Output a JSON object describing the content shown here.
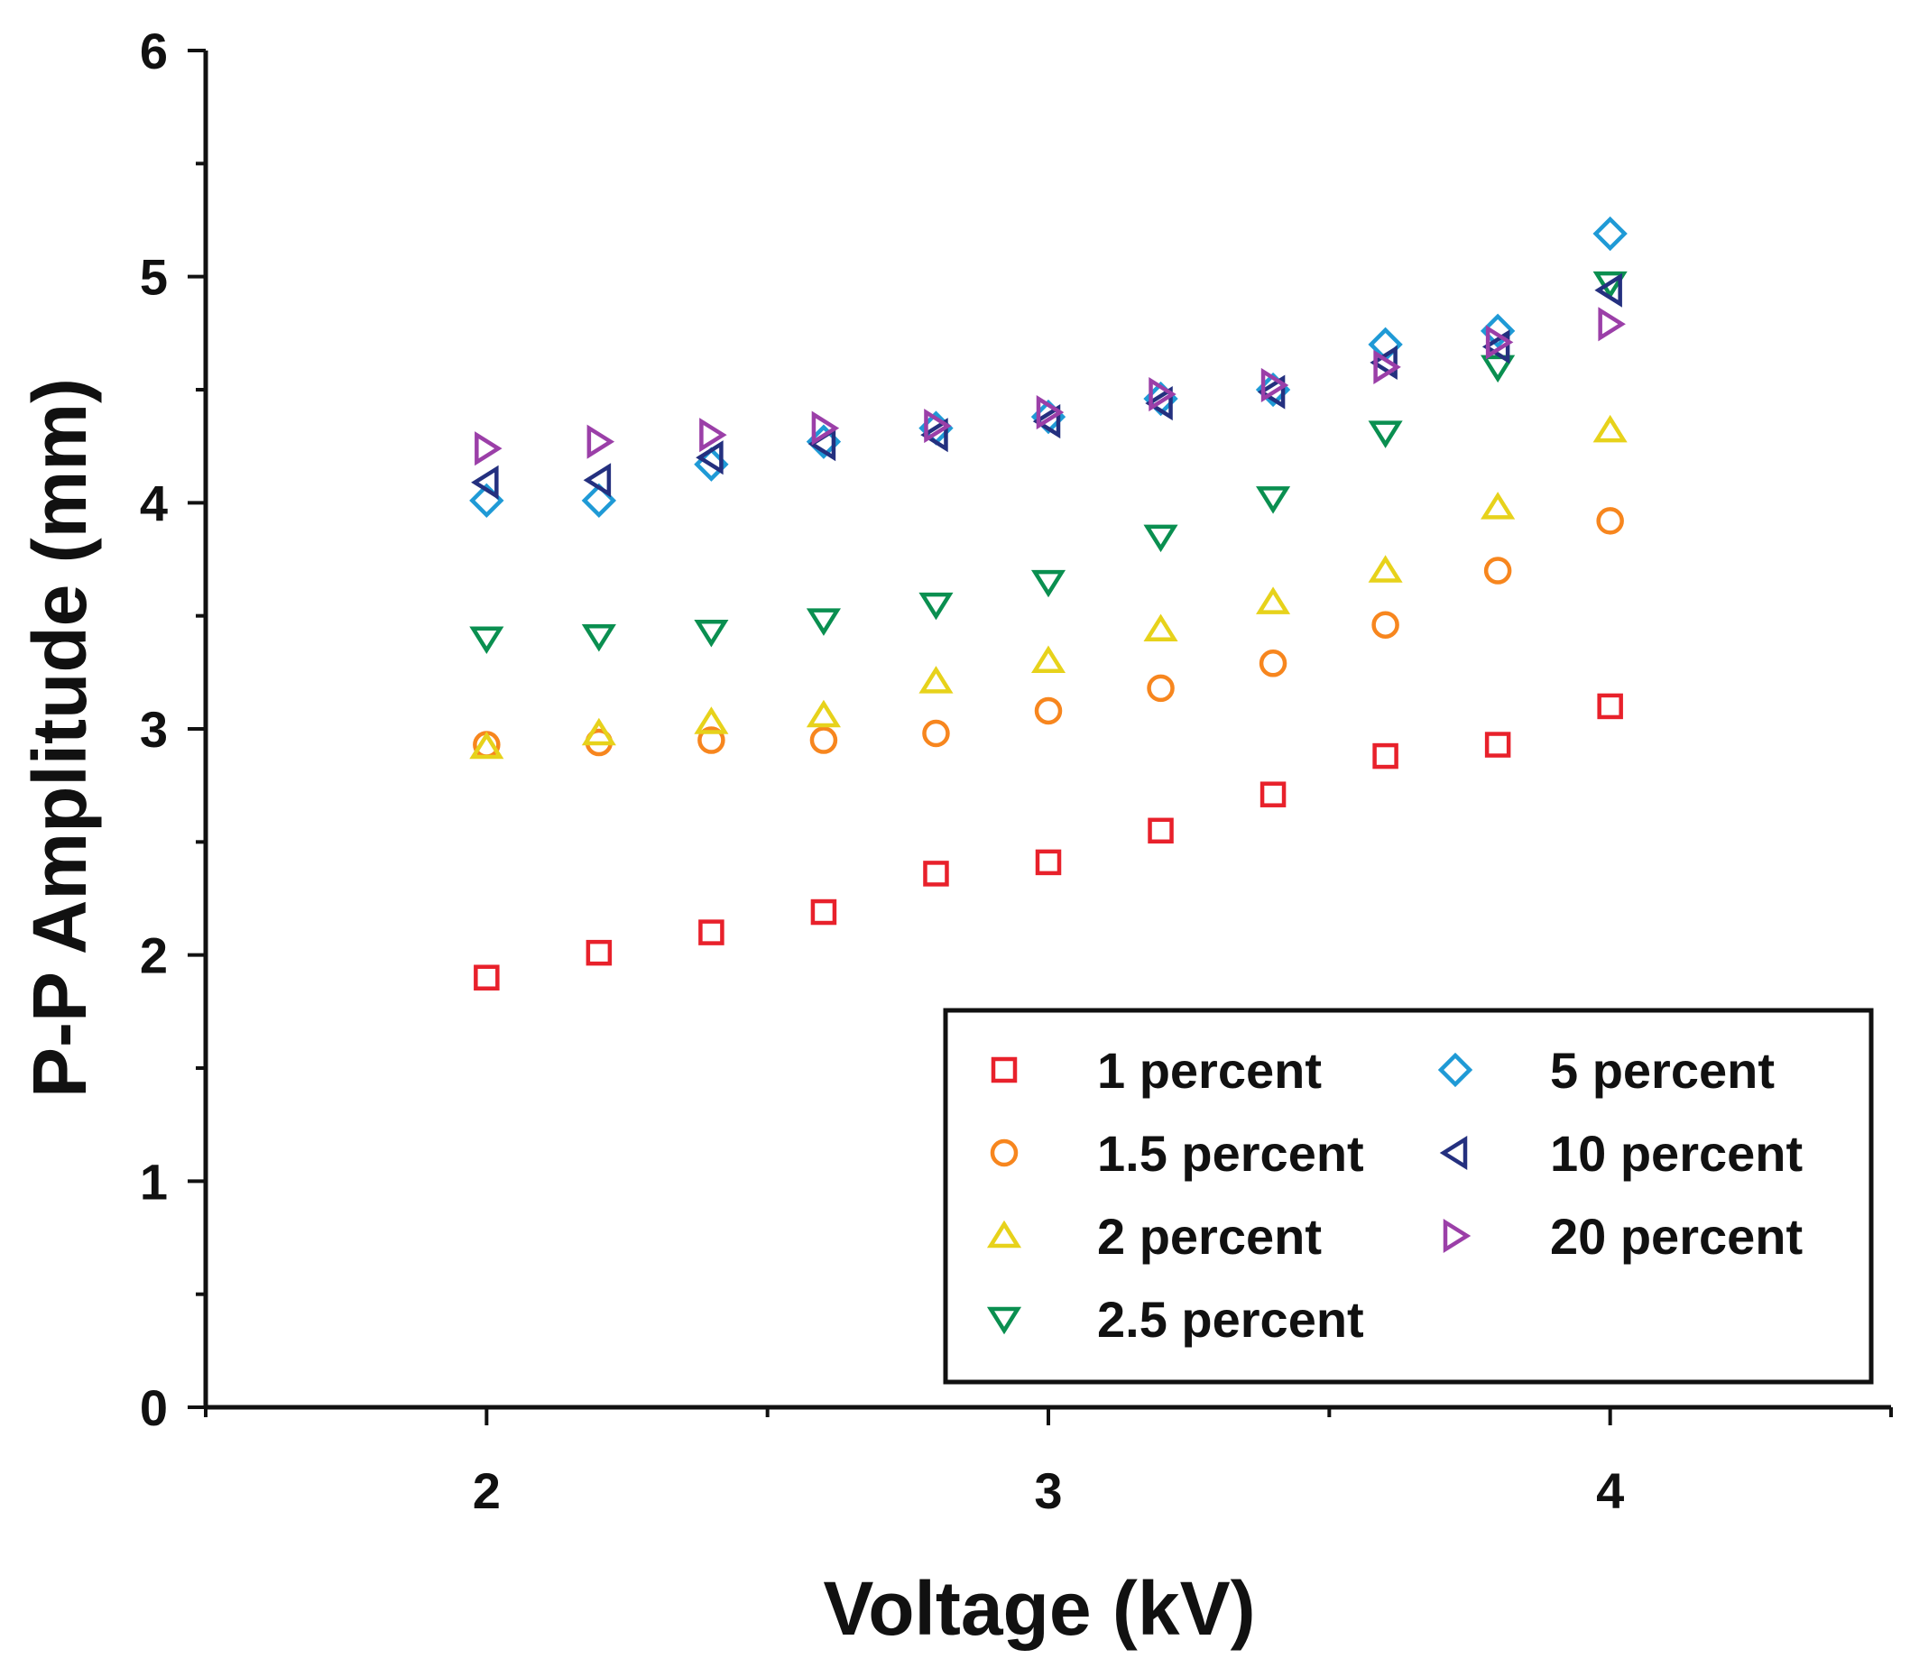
{
  "chart_data": {
    "type": "scatter",
    "title": "",
    "xlabel": "Voltage (kV)",
    "ylabel": "P-P Amplitude (mm)",
    "xlim": [
      1.5,
      4.5
    ],
    "ylim": [
      0,
      6
    ],
    "x_ticks": [
      "2",
      "3",
      "4"
    ],
    "y_ticks": [
      "0",
      "1",
      "2",
      "3",
      "4",
      "5",
      "6"
    ],
    "legend_position": "bottom-right",
    "x": [
      2.0,
      2.2,
      2.4,
      2.6,
      2.8,
      3.0,
      3.2,
      3.4,
      3.6,
      3.8,
      4.0
    ],
    "series": [
      {
        "name": "1 percent",
        "marker": "square",
        "color": "#e8212b",
        "values": [
          1.9,
          2.01,
          2.1,
          2.19,
          2.36,
          2.41,
          2.55,
          2.71,
          2.88,
          2.93,
          3.1
        ]
      },
      {
        "name": "1.5 percent",
        "marker": "circle",
        "color": "#f7861e",
        "values": [
          2.93,
          2.94,
          2.95,
          2.95,
          2.98,
          3.08,
          3.18,
          3.29,
          3.46,
          3.7,
          3.92
        ]
      },
      {
        "name": "2 percent",
        "marker": "triangle-up",
        "color": "#e7d21b",
        "values": [
          2.92,
          2.98,
          3.03,
          3.06,
          3.21,
          3.3,
          3.44,
          3.56,
          3.7,
          3.98,
          4.32
        ]
      },
      {
        "name": "2.5 percent",
        "marker": "triangle-down",
        "color": "#0a8f50",
        "values": [
          3.4,
          3.41,
          3.43,
          3.48,
          3.55,
          3.65,
          3.85,
          4.02,
          4.31,
          4.6,
          4.97
        ]
      },
      {
        "name": "5 percent",
        "marker": "diamond",
        "color": "#1f9ad6",
        "values": [
          4.01,
          4.01,
          4.17,
          4.27,
          4.33,
          4.38,
          4.46,
          4.5,
          4.7,
          4.76,
          5.19
        ]
      },
      {
        "name": "10 percent",
        "marker": "triangle-left",
        "color": "#24307f",
        "values": [
          4.09,
          4.1,
          4.2,
          4.26,
          4.3,
          4.36,
          4.44,
          4.49,
          4.62,
          4.69,
          4.94
        ]
      },
      {
        "name": "20 percent",
        "marker": "triangle-right",
        "color": "#9b3fa8",
        "values": [
          4.24,
          4.27,
          4.3,
          4.33,
          4.34,
          4.4,
          4.48,
          4.52,
          4.6,
          4.71,
          4.79
        ]
      }
    ]
  }
}
